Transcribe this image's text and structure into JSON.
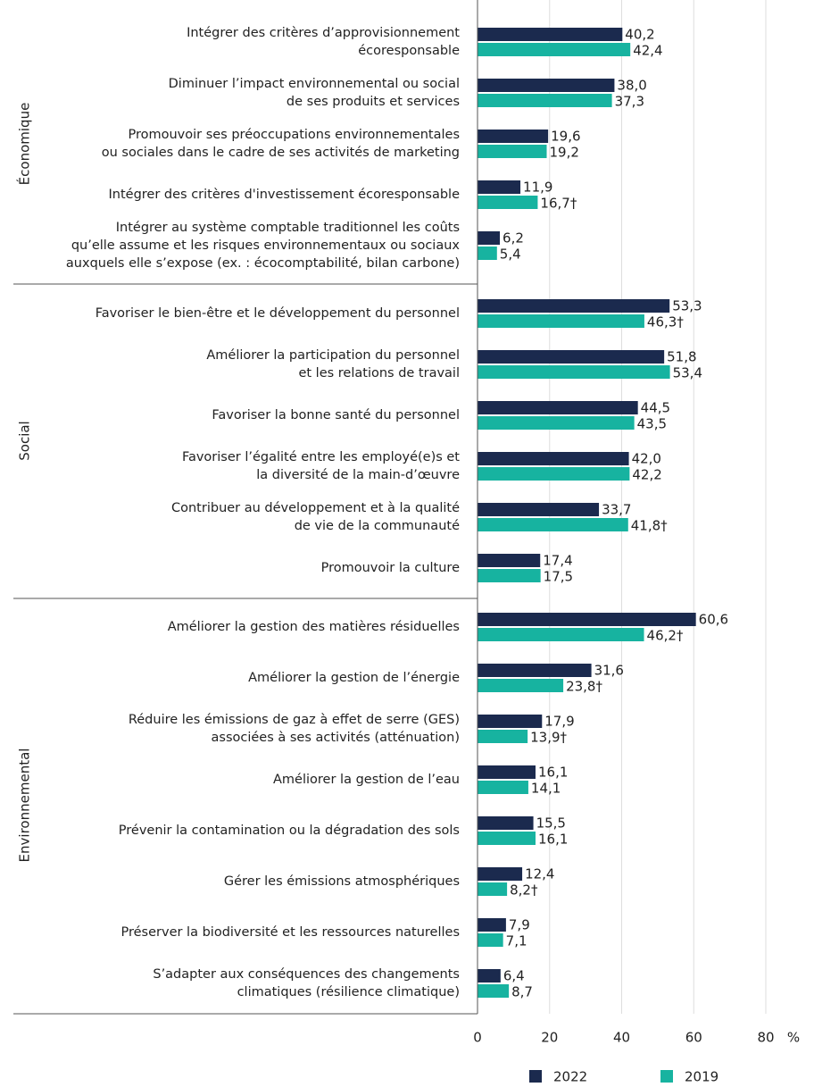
{
  "chart_data": {
    "type": "bar",
    "orientation": "horizontal",
    "groups": [
      {
        "name": "Économique",
        "categories": [
          "Intégrer des critères d’approvisionnement\nécoresponsable",
          "Diminuer l’impact environnemental ou social\nde ses produits et services",
          "Promouvoir ses préoccupations environnementales\nou sociales dans le cadre de ses activités de marketing",
          "Intégrer des critères d'investissement écoresponsable",
          "Intégrer au système comptable traditionnel les coûts\nqu’elle assume et les risques environnementaux ou sociaux\nauxquels elle s’expose (ex. : écocomptabilité, bilan carbone)"
        ]
      },
      {
        "name": "Social",
        "categories": [
          "Favoriser le bien-être et le développement du personnel",
          "Améliorer la participation du personnel\net les relations de travail",
          "Favoriser la bonne santé du personnel",
          "Favoriser l’égalité entre les employé(e)s et\nla diversité de la main-d’œuvre",
          "Contribuer au développement et à la qualité\nde vie de la communauté",
          "Promouvoir la culture"
        ]
      },
      {
        "name": "Environnemental",
        "categories": [
          "Améliorer la gestion des matières résiduelles",
          "Améliorer la gestion de l’énergie",
          "Réduire les émissions de gaz à effet de serre (GES)\nassociées à ses activités (atténuation)",
          "Améliorer la gestion de l’eau",
          "Prévenir la contamination ou la dégradation des sols",
          "Gérer les émissions atmosphériques",
          "Préserver la biodiversité et les ressources naturelles",
          "S’adapter aux conséquences des changements\nclimatiques (résilience climatique)"
        ]
      }
    ],
    "series": [
      {
        "name": "2022",
        "color": "#1b2a4e",
        "values": [
          40.2,
          38.0,
          19.6,
          11.9,
          6.2,
          53.3,
          51.8,
          44.5,
          42.0,
          33.7,
          17.4,
          60.6,
          31.6,
          17.9,
          16.1,
          15.5,
          12.4,
          7.9,
          6.4
        ],
        "value_labels": [
          "40,2",
          "38,0",
          "19,6",
          "11,9",
          "6,2",
          "53,3",
          "51,8",
          "44,5",
          "42,0",
          "33,7",
          "17,4",
          "60,6",
          "31,6",
          "17,9",
          "16,1",
          "15,5",
          "12,4",
          "7,9",
          "6,4"
        ]
      },
      {
        "name": "2019",
        "color": "#17b3a0",
        "values": [
          42.4,
          37.3,
          19.2,
          16.7,
          5.4,
          46.3,
          53.4,
          43.5,
          42.2,
          41.8,
          17.5,
          46.2,
          23.8,
          13.9,
          14.1,
          16.1,
          8.2,
          7.1,
          8.7
        ],
        "value_labels": [
          "42,4",
          "37,3",
          "19,2",
          "16,7†",
          "5,4",
          "46,3†",
          "53,4",
          "43,5",
          "42,2",
          "41,8†",
          "17,5",
          "46,2†",
          "23,8†",
          "13,9†",
          "14,1",
          "16,1",
          "8,2†",
          "7,1",
          "8,7"
        ]
      }
    ],
    "xlabel": "%",
    "xlim": [
      0,
      80
    ],
    "xticks": [
      0,
      20,
      40,
      60,
      80
    ],
    "grid": true
  }
}
